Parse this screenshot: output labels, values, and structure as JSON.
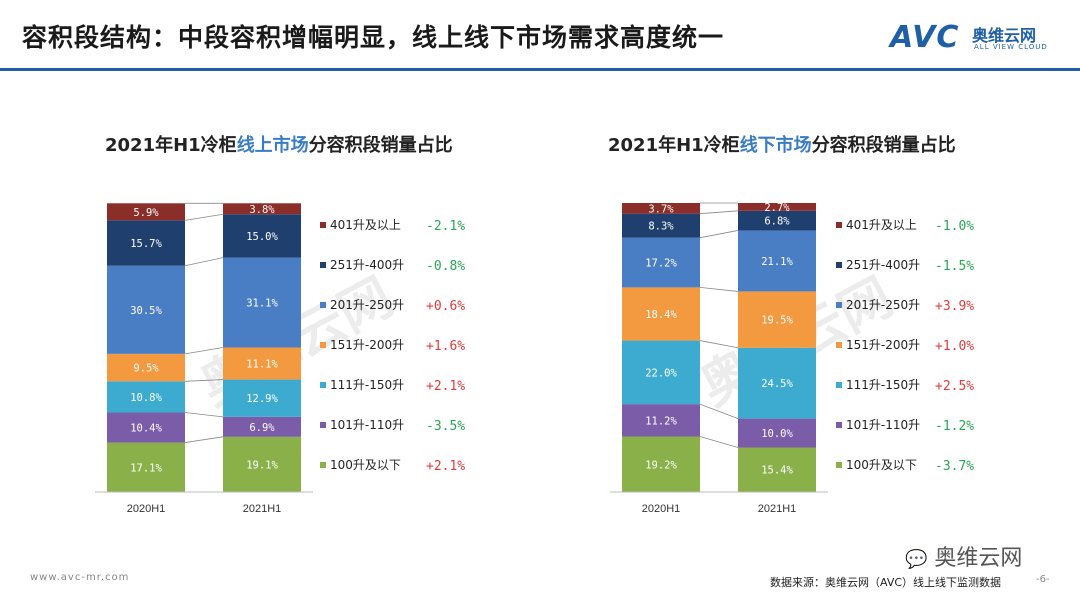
{
  "header": {
    "title": "容积段结构：中段容积增幅明显，线上线下市场需求高度统一",
    "logo_text": "AVC",
    "logo_cn": "奥维云网",
    "logo_en": "ALL VIEW CLOUD"
  },
  "colors": {
    "accent": "#1f5fa8",
    "positive": "#e03c3c",
    "negative": "#2aa654"
  },
  "chart_data": [
    {
      "type": "bar",
      "stacked": true,
      "title_prefix": "2021年H1冷柜",
      "title_highlight": "线上市场",
      "title_suffix": "分容积段销量占比",
      "categories": [
        "2020H1",
        "2021H1"
      ],
      "series": [
        {
          "name": "100升及以下",
          "color": "#8ab04a",
          "values": [
            17.1,
            19.1
          ],
          "labels": [
            "17.1%",
            "19.1%"
          ],
          "change": "+2.1%"
        },
        {
          "name": "101升-110升",
          "color": "#7a5ca8",
          "values": [
            10.4,
            6.9
          ],
          "labels": [
            "10.4%",
            "6.9%"
          ],
          "change": "-3.5%"
        },
        {
          "name": "111升-150升",
          "color": "#3cabcf",
          "values": [
            10.8,
            12.9
          ],
          "labels": [
            "10.8%",
            "12.9%"
          ],
          "change": "+2.1%"
        },
        {
          "name": "151升-200升",
          "color": "#f39a40",
          "values": [
            9.5,
            11.1
          ],
          "labels": [
            "9.5%",
            "11.1%"
          ],
          "change": "+1.6%"
        },
        {
          "name": "201升-250升",
          "color": "#4a7ec4",
          "values": [
            30.5,
            31.1
          ],
          "labels": [
            "30.5%",
            "31.1%"
          ],
          "change": "+0.6%"
        },
        {
          "name": "251升-400升",
          "color": "#1f3f6e",
          "values": [
            15.7,
            15.0
          ],
          "labels": [
            "15.7%",
            "15.0%"
          ],
          "change": "-0.8%"
        },
        {
          "name": "401升及以上",
          "color": "#8b2e2a",
          "values": [
            5.9,
            3.8
          ],
          "labels": [
            "5.9%",
            "3.8%"
          ],
          "change": "-2.1%"
        }
      ]
    },
    {
      "type": "bar",
      "stacked": true,
      "title_prefix": "2021年H1冷柜",
      "title_highlight": "线下市场",
      "title_suffix": "分容积段销量占比",
      "categories": [
        "2020H1",
        "2021H1"
      ],
      "series": [
        {
          "name": "100升及以下",
          "color": "#8ab04a",
          "values": [
            19.2,
            15.4
          ],
          "labels": [
            "19.2%",
            "15.4%"
          ],
          "change": "-3.7%"
        },
        {
          "name": "101升-110升",
          "color": "#7a5ca8",
          "values": [
            11.2,
            10.0
          ],
          "labels": [
            "11.2%",
            "10.0%"
          ],
          "change": "-1.2%"
        },
        {
          "name": "111升-150升",
          "color": "#3cabcf",
          "values": [
            22.0,
            24.5
          ],
          "labels": [
            "22.0%",
            "24.5%"
          ],
          "change": "+2.5%"
        },
        {
          "name": "151升-200升",
          "color": "#f39a40",
          "values": [
            18.4,
            19.5
          ],
          "labels": [
            "18.4%",
            "19.5%"
          ],
          "change": "+1.0%"
        },
        {
          "name": "201升-250升",
          "color": "#4a7ec4",
          "values": [
            17.2,
            21.1
          ],
          "labels": [
            "17.2%",
            "21.1%"
          ],
          "change": "+3.9%"
        },
        {
          "name": "251升-400升",
          "color": "#1f3f6e",
          "values": [
            8.3,
            6.8
          ],
          "labels": [
            "8.3%",
            "6.8%"
          ],
          "change": "-1.5%"
        },
        {
          "name": "401升及以上",
          "color": "#8b2e2a",
          "values": [
            3.7,
            2.7
          ],
          "labels": [
            "3.7%",
            "2.7%"
          ],
          "change": "-1.0%"
        }
      ]
    }
  ],
  "footer": {
    "url": "www.avc-mr.com",
    "source": "数据来源：奥维云网（AVC）线上线下监测数据",
    "page": "-6-",
    "wechat_label": "奥维云网"
  }
}
